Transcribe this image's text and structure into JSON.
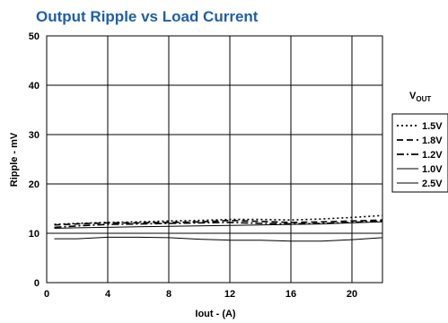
{
  "chart_data": {
    "type": "line",
    "title": "Output Ripple vs Load Current",
    "xlabel": "Iout - (A)",
    "ylabel": "Ripple - mV",
    "xlim": [
      0,
      22
    ],
    "ylim": [
      0,
      50
    ],
    "x_ticks": [
      "0",
      "4",
      "8",
      "12",
      "16",
      "20"
    ],
    "y_ticks": [
      "0",
      "10",
      "20",
      "30",
      "40",
      "50"
    ],
    "grid": true,
    "legend_title_main": "V",
    "legend_title_sub": "OUT",
    "legend_position": "right",
    "x": [
      0.5,
      2,
      4,
      6,
      8,
      10,
      12,
      14,
      16,
      18,
      20,
      22
    ],
    "series": [
      {
        "name": "1.5V",
        "style": "dotted",
        "color": "#000000",
        "values": [
          11.8,
          12.0,
          12.2,
          12.3,
          12.5,
          12.6,
          12.8,
          12.8,
          12.7,
          12.9,
          13.2,
          13.6
        ]
      },
      {
        "name": "1.8V",
        "style": "dashed",
        "color": "#000000",
        "values": [
          11.7,
          11.9,
          12.1,
          12.1,
          12.2,
          12.3,
          12.6,
          12.4,
          12.2,
          12.3,
          12.5,
          12.7
        ]
      },
      {
        "name": "1.2V",
        "style": "dashdot",
        "color": "#000000",
        "values": [
          11.2,
          11.5,
          11.8,
          11.9,
          12.0,
          12.1,
          12.2,
          12.0,
          11.9,
          12.0,
          12.2,
          12.5
        ]
      },
      {
        "name": "1.0V",
        "style": "solid",
        "color": "#000000",
        "values": [
          11.0,
          11.1,
          11.2,
          11.3,
          11.4,
          11.5,
          11.6,
          11.7,
          11.8,
          11.9,
          12.1,
          12.3
        ]
      },
      {
        "name": "2.5V",
        "style": "solid",
        "color": "#000000",
        "values": [
          8.9,
          8.9,
          9.2,
          9.2,
          9.1,
          8.8,
          8.6,
          8.6,
          8.4,
          8.4,
          8.7,
          9.1
        ]
      }
    ]
  }
}
